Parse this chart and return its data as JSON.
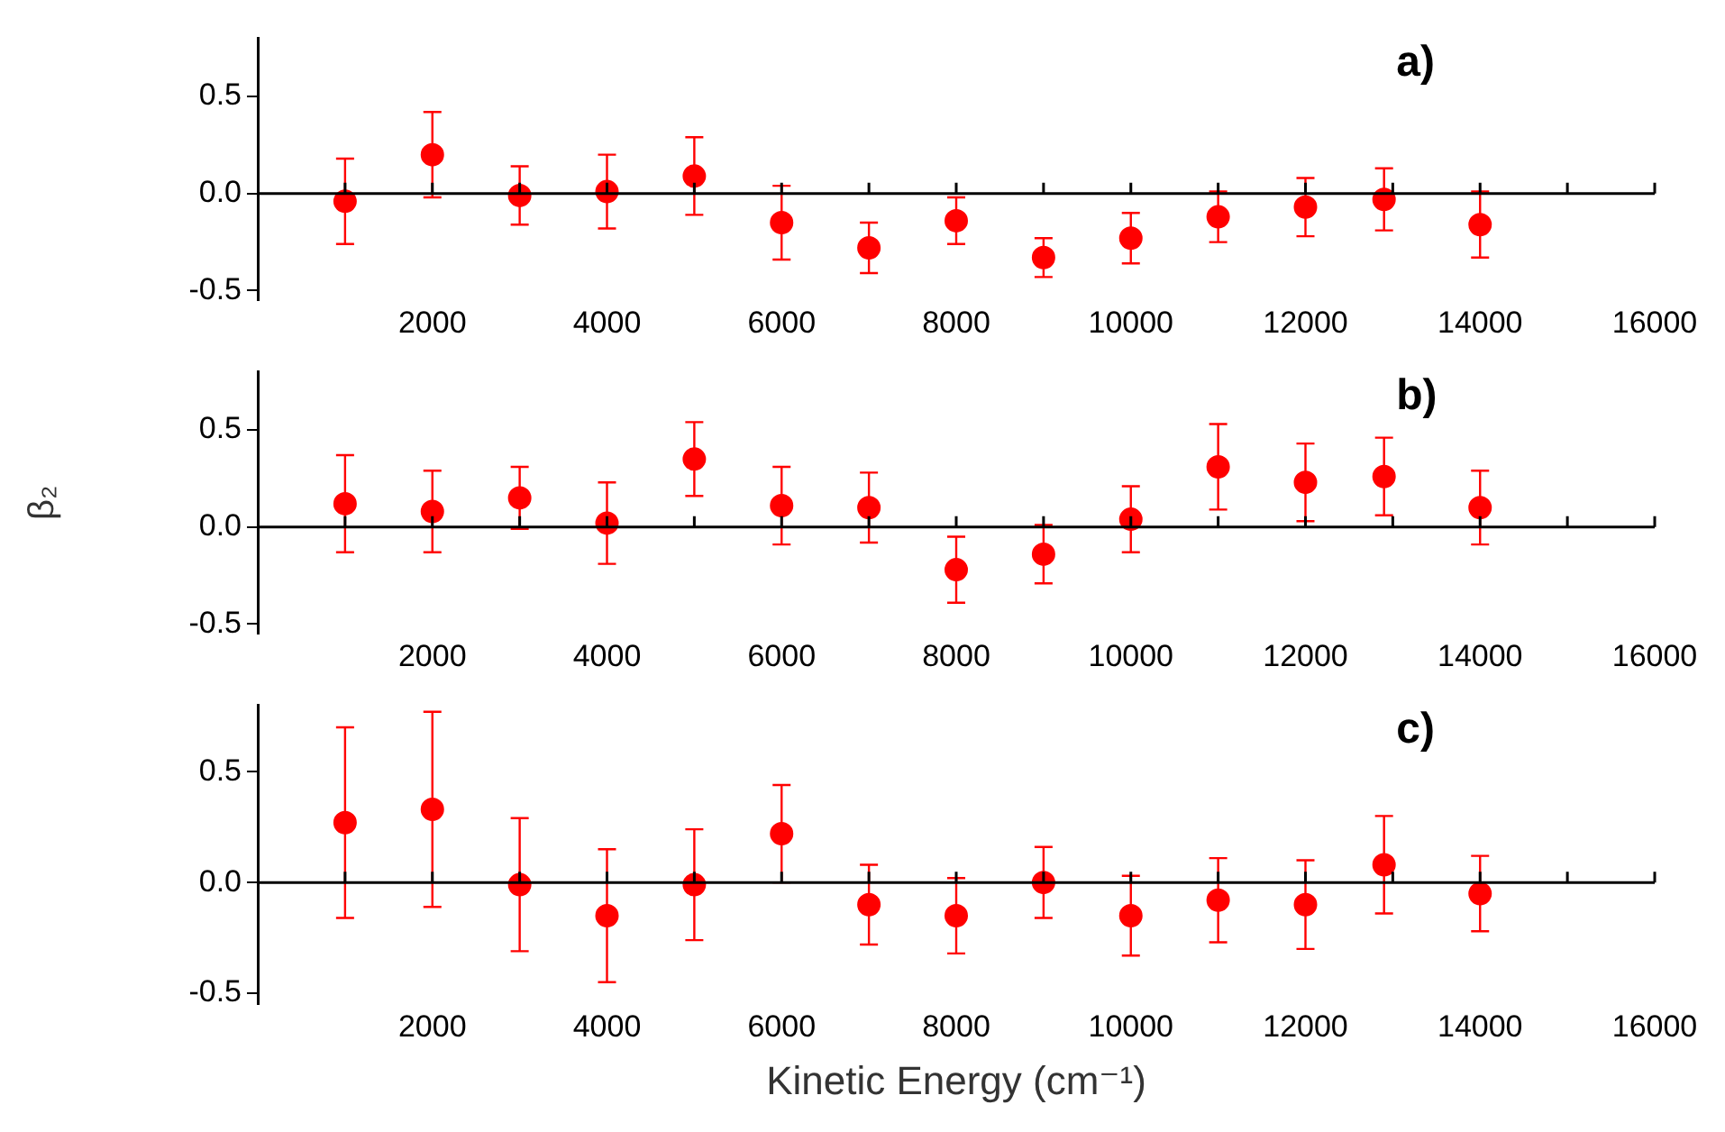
{
  "chart_data": [
    {
      "type": "scatter",
      "title": "a)",
      "ref_lines": [
        {
          "axis": "y",
          "value": 0
        }
      ],
      "x": [
        1000,
        2000,
        3000,
        4000,
        5000,
        6000,
        7000,
        8000,
        9000,
        10000,
        11000,
        12000,
        12900,
        14000
      ],
      "color": "#ff0000",
      "marker": "circle",
      "legend": false,
      "grid": false,
      "tick_labels": "xy",
      "values": [
        -0.04,
        0.2,
        -0.01,
        0.01,
        0.09,
        -0.15,
        -0.28,
        -0.14,
        -0.33,
        -0.23,
        -0.12,
        -0.07,
        -0.03,
        -0.16
      ],
      "errors": [
        0.22,
        0.22,
        0.15,
        0.19,
        0.2,
        0.19,
        0.13,
        0.12,
        0.1,
        0.13,
        0.13,
        0.15,
        0.16,
        0.17
      ],
      "xlim": [
        0,
        16000
      ],
      "xticks": [
        {
          "value": 1000,
          "label": null
        },
        2000,
        {
          "value": 3000,
          "label": null
        },
        4000,
        {
          "value": 5000,
          "label": null
        },
        6000,
        {
          "value": 7000,
          "label": null
        },
        8000,
        {
          "value": 9000,
          "label": null
        },
        10000,
        {
          "value": 11000,
          "label": null
        },
        12000,
        {
          "value": 13000,
          "label": null
        },
        14000,
        {
          "value": 15000,
          "label": null
        },
        16000
      ],
      "ylim": [
        -0.55,
        0.8
      ],
      "yticks": [
        {
          "value": -0.5,
          "label": "-0.5"
        },
        {
          "value": 0,
          "label": "0.0"
        },
        {
          "value": 0.5,
          "label": "0.5"
        }
      ]
    },
    {
      "type": "scatter",
      "title": "b)",
      "ref_lines": [
        {
          "axis": "y",
          "value": 0
        }
      ],
      "ylabel": "β₂",
      "x": [
        1000,
        2000,
        3000,
        4000,
        5000,
        6000,
        7000,
        8000,
        9000,
        10000,
        11000,
        12000,
        12900,
        14000
      ],
      "color": "#ff0000",
      "marker": "circle",
      "legend": false,
      "grid": false,
      "values": [
        0.12,
        0.08,
        0.15,
        0.02,
        0.35,
        0.11,
        0.1,
        -0.22,
        -0.14,
        0.04,
        0.31,
        0.23,
        0.26,
        0.1
      ],
      "errors": [
        0.25,
        0.21,
        0.16,
        0.21,
        0.19,
        0.2,
        0.18,
        0.17,
        0.15,
        0.17,
        0.22,
        0.2,
        0.2,
        0.19
      ],
      "xlim": [
        0,
        16000
      ],
      "xticks": [
        {
          "value": 1000,
          "label": null
        },
        2000,
        {
          "value": 3000,
          "label": null
        },
        4000,
        {
          "value": 5000,
          "label": null
        },
        6000,
        {
          "value": 7000,
          "label": null
        },
        8000,
        {
          "value": 9000,
          "label": null
        },
        10000,
        {
          "value": 11000,
          "label": null
        },
        12000,
        {
          "value": 13000,
          "label": null
        },
        14000,
        {
          "value": 15000,
          "label": null
        },
        16000
      ],
      "ylim": [
        -0.55,
        0.8
      ],
      "yticks": [
        {
          "value": -0.5,
          "label": "-0.5"
        },
        {
          "value": 0,
          "label": "0.0"
        },
        {
          "value": 0.5,
          "label": "0.5"
        }
      ]
    },
    {
      "type": "scatter",
      "title": "c)",
      "ref_lines": [
        {
          "axis": "y",
          "value": 0
        }
      ],
      "xlabel": "Kinetic Energy (cm⁻¹)",
      "x": [
        1000,
        2000,
        3000,
        4000,
        5000,
        6000,
        7000,
        8000,
        9000,
        10000,
        11000,
        12000,
        12900,
        14000
      ],
      "color": "#ff0000",
      "marker": "circle",
      "legend": false,
      "grid": false,
      "values": [
        0.27,
        0.33,
        -0.01,
        -0.15,
        -0.01,
        0.22,
        -0.1,
        -0.15,
        0.0,
        -0.15,
        -0.08,
        -0.1,
        0.08,
        -0.05
      ],
      "errors": [
        0.43,
        0.44,
        0.3,
        0.3,
        0.25,
        0.22,
        0.18,
        0.17,
        0.16,
        0.18,
        0.19,
        0.2,
        0.22,
        0.17
      ],
      "xlim": [
        0,
        16000
      ],
      "xticks": [
        {
          "value": 1000,
          "label": null
        },
        2000,
        {
          "value": 3000,
          "label": null
        },
        4000,
        {
          "value": 5000,
          "label": null
        },
        6000,
        {
          "value": 7000,
          "label": null
        },
        8000,
        {
          "value": 9000,
          "label": null
        },
        10000,
        {
          "value": 11000,
          "label": null
        },
        12000,
        {
          "value": 13000,
          "label": null
        },
        14000,
        {
          "value": 15000,
          "label": null
        },
        16000
      ],
      "ylim": [
        -0.55,
        0.8
      ],
      "yticks": [
        {
          "value": -0.5,
          "label": "-0.5"
        },
        {
          "value": 0,
          "label": "0.0"
        },
        {
          "value": 0.5,
          "label": "0.5"
        }
      ]
    }
  ]
}
